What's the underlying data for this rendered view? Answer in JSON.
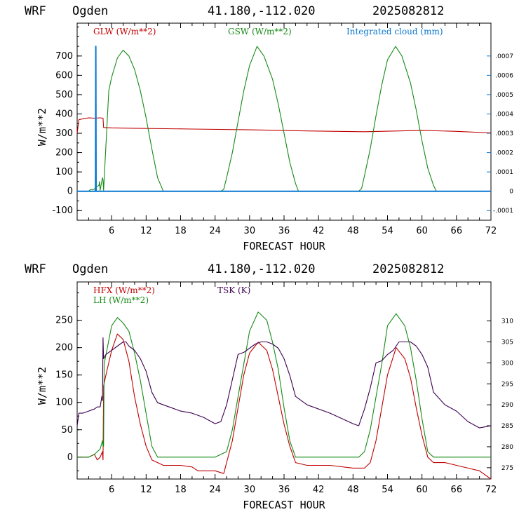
{
  "colors": {
    "axis": "#000000",
    "red": "#c00000",
    "green": "#168a16",
    "blue": "#0a78d2",
    "purple": "#3c0050"
  },
  "chart_data": [
    {
      "type": "line",
      "header": {
        "model": "WRF",
        "station": "Ogden",
        "coords": "41.180,-112.020",
        "run": "2025082812"
      },
      "xlabel": "FORECAST HOUR",
      "ylabel": "W/m**2",
      "xlim": [
        0,
        72
      ],
      "ylim": [
        -150,
        870
      ],
      "x_ticks": [
        "6",
        "12",
        "18",
        "24",
        "30",
        "36",
        "42",
        "48",
        "54",
        "60",
        "66",
        "72"
      ],
      "y_ticks": [
        "-100",
        "0",
        "100",
        "200",
        "300",
        "400",
        "500",
        "600",
        "700"
      ],
      "y2lim": [
        -0.00015,
        0.00087
      ],
      "y2_ticks": [
        "-.0001",
        "0",
        ".0001",
        ".0002",
        ".0003",
        ".0004",
        ".0005",
        ".0006",
        ".0007"
      ],
      "series": [
        {
          "name": "GLW (W/m**2)",
          "color": "red",
          "axis": "left",
          "x": [
            0,
            0.3,
            1,
            2,
            3,
            4,
            4.5,
            4.6,
            6,
            10,
            20,
            30,
            40,
            50,
            60,
            66,
            72
          ],
          "y": [
            300,
            370,
            375,
            380,
            378,
            380,
            378,
            330,
            328,
            326,
            322,
            318,
            312,
            308,
            315,
            310,
            302
          ]
        },
        {
          "name": "GSW (W/m**2)",
          "color": "green",
          "axis": "left",
          "x": [
            0,
            2,
            2.3,
            3,
            3.2,
            3.8,
            3.9,
            4.0,
            4.4,
            4.5,
            4.6,
            5.5,
            6,
            7,
            8,
            9,
            10,
            11,
            12,
            13,
            14,
            15,
            15.5,
            18,
            20,
            25,
            25.5,
            26,
            27,
            28,
            29,
            30,
            31.3,
            32.5,
            34,
            35,
            36,
            37,
            38,
            38.5,
            40,
            44,
            49,
            49.5,
            50,
            51,
            52,
            53,
            54,
            55.4,
            56.5,
            58,
            59,
            60,
            61,
            62,
            62.5,
            64,
            68,
            72
          ],
          "y": [
            0,
            0,
            8,
            10,
            20,
            30,
            50,
            5,
            70,
            60,
            5,
            520,
            590,
            690,
            730,
            700,
            630,
            520,
            380,
            220,
            70,
            0,
            0,
            0,
            0,
            0,
            10,
            70,
            200,
            360,
            520,
            650,
            750,
            700,
            580,
            450,
            300,
            150,
            40,
            0,
            0,
            0,
            0,
            15,
            80,
            220,
            390,
            550,
            680,
            750,
            700,
            560,
            420,
            260,
            120,
            30,
            0,
            0,
            0,
            0
          ]
        },
        {
          "name": "Integrated cloud (mm)",
          "color": "blue",
          "axis": "right",
          "x": [
            0,
            3.2,
            3.25,
            3.3,
            72
          ],
          "y": [
            0,
            0,
            0.00075,
            0,
            0
          ]
        }
      ],
      "legend_placement": "top"
    },
    {
      "type": "line",
      "header": {
        "model": "WRF",
        "station": "Ogden",
        "coords": "41.180,-112.020",
        "run": "2025082812"
      },
      "xlabel": "FORECAST HOUR",
      "ylabel": "W/m**2",
      "xlim": [
        0,
        72
      ],
      "ylim": [
        -40,
        320
      ],
      "x_ticks": [
        "6",
        "12",
        "18",
        "24",
        "30",
        "36",
        "42",
        "48",
        "54",
        "60",
        "66",
        "72"
      ],
      "y_ticks": [
        "0",
        "50",
        "100",
        "150",
        "200",
        "250"
      ],
      "y2lim": [
        272.3,
        319.3
      ],
      "y2_ticks": [
        "275",
        "280",
        "285",
        "290",
        "295",
        "300",
        "305",
        "310"
      ],
      "series": [
        {
          "name": "HFX (W/m**2)",
          "color": "red",
          "axis": "left",
          "x": [
            0,
            1,
            2,
            3,
            3.5,
            4,
            4.4,
            4.5,
            4.6,
            5,
            6,
            7,
            8,
            9,
            10,
            11,
            12,
            13,
            14,
            15,
            16,
            18,
            20,
            21,
            22,
            24,
            25.5,
            26,
            27,
            28,
            29,
            30,
            31.5,
            33,
            34,
            35,
            36,
            37,
            38,
            40,
            44,
            48,
            50,
            51,
            52,
            53,
            54,
            55.5,
            57,
            58,
            59,
            60,
            61,
            62,
            64,
            66,
            68,
            70,
            72
          ],
          "y": [
            0,
            0,
            0,
            5,
            -5,
            0,
            10,
            -5,
            130,
            150,
            195,
            225,
            215,
            175,
            110,
            60,
            20,
            -5,
            -10,
            -15,
            -15,
            -15,
            -18,
            -25,
            -25,
            -25,
            -30,
            -10,
            30,
            90,
            150,
            190,
            210,
            195,
            160,
            110,
            60,
            20,
            -10,
            -15,
            -15,
            -20,
            -20,
            -10,
            30,
            90,
            150,
            200,
            180,
            145,
            90,
            40,
            0,
            -10,
            -10,
            -15,
            -20,
            -25,
            -40
          ]
        },
        {
          "name": "LH (W/m**2)",
          "color": "green",
          "axis": "left",
          "x": [
            0,
            2,
            3,
            3.5,
            4,
            4.4,
            4.5,
            4.6,
            4.7,
            6,
            7,
            8,
            9,
            10,
            11,
            12,
            13,
            14,
            18,
            20,
            22,
            24,
            25,
            26,
            27,
            28,
            29,
            30,
            31.5,
            33,
            34,
            35,
            36,
            37,
            38,
            40,
            44,
            48,
            49,
            50,
            51,
            52,
            53,
            54,
            55.5,
            57,
            58,
            59,
            60,
            61,
            62,
            64,
            68,
            72
          ],
          "y": [
            0,
            0,
            5,
            10,
            15,
            30,
            20,
            20,
            170,
            240,
            255,
            245,
            230,
            190,
            140,
            80,
            20,
            0,
            0,
            0,
            0,
            0,
            5,
            10,
            50,
            110,
            170,
            230,
            265,
            250,
            210,
            160,
            90,
            30,
            0,
            0,
            0,
            0,
            0,
            10,
            50,
            110,
            170,
            240,
            262,
            240,
            200,
            140,
            70,
            10,
            0,
            0,
            0,
            0
          ]
        },
        {
          "name": "TSK (K)",
          "color": "purple",
          "axis": "right",
          "x": [
            0,
            0.3,
            1,
            2,
            3,
            3.5,
            4,
            4.3,
            4.4,
            4.5,
            4.6,
            5,
            6,
            7,
            8,
            8.5,
            9,
            10,
            11,
            12,
            13,
            14,
            16,
            18,
            20,
            22,
            24,
            25,
            26,
            27,
            28,
            29,
            30,
            31,
            32,
            33,
            34,
            35,
            36,
            37,
            38,
            40,
            44,
            48,
            49,
            50,
            51,
            52,
            53,
            54,
            55,
            56,
            57,
            58,
            59,
            60,
            61,
            62,
            64,
            66,
            68,
            70,
            72
          ],
          "y": [
            285,
            288,
            288,
            288.5,
            289,
            289.5,
            289.5,
            292,
            291,
            306,
            301,
            302,
            303,
            304,
            305,
            305,
            304,
            303,
            301,
            298,
            293,
            290.5,
            289.5,
            288.5,
            288,
            287,
            285.5,
            286,
            290,
            296,
            302,
            302.5,
            303.5,
            304.5,
            305,
            305,
            304.5,
            303.5,
            301,
            297,
            292,
            290,
            288,
            285.5,
            285,
            289,
            294,
            300,
            300.5,
            302,
            303,
            305,
            305,
            305,
            304,
            302,
            299,
            293,
            290,
            288.5,
            286,
            284.5,
            285
          ]
        }
      ],
      "legend_placement": "top-left"
    }
  ]
}
